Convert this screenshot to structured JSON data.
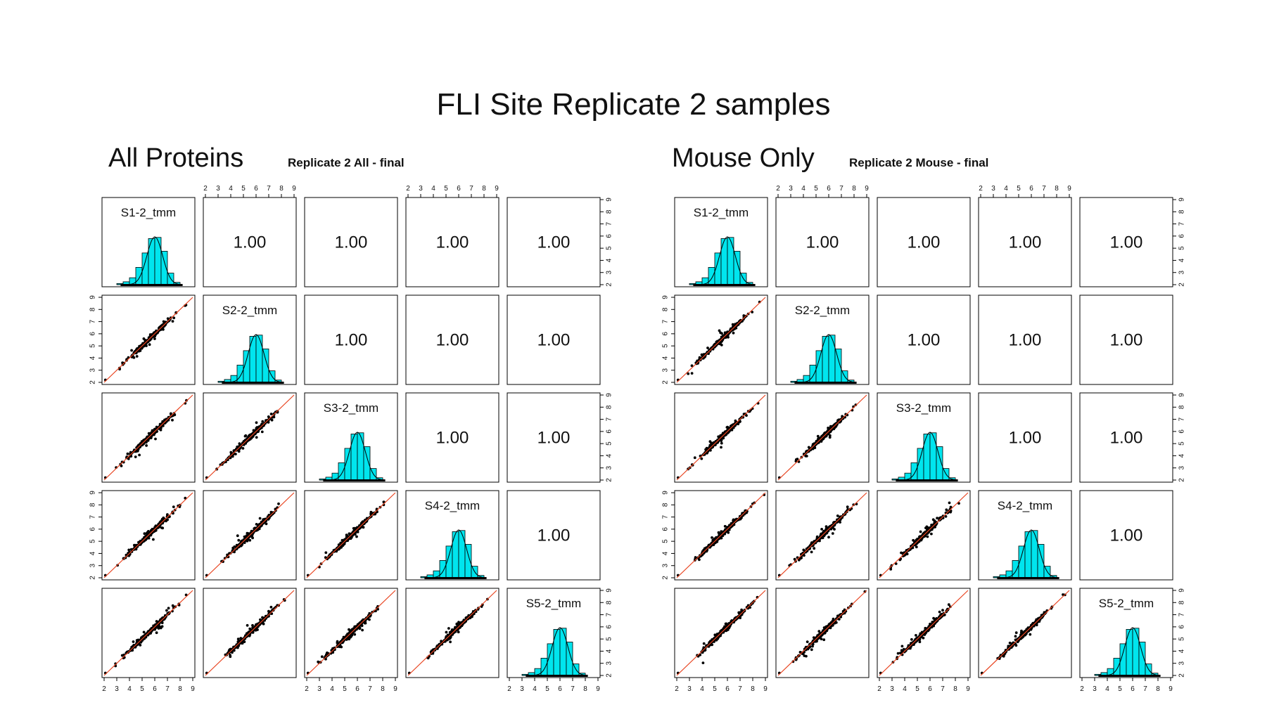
{
  "page": {
    "title": "FLI Site Replicate 2 samples"
  },
  "colors": {
    "hist_fill": "#00e5ee",
    "point": "#000000",
    "fit_line": "#e8431f",
    "frame": "#000000"
  },
  "chart_data": [
    {
      "type": "scatter",
      "section_label": "All Proteins",
      "title": "Replicate 2 All - final",
      "variables": [
        "S1-2_tmm",
        "S2-2_tmm",
        "S3-2_tmm",
        "S4-2_tmm",
        "S5-2_tmm"
      ],
      "axis_range": [
        2,
        9
      ],
      "tick_labels": [
        "2",
        "3",
        "4",
        "5",
        "6",
        "7",
        "8",
        "9"
      ],
      "diagonal": "histogram",
      "upper": "correlation",
      "correlations": [
        [
          "",
          "1.00",
          "1.00",
          "1.00",
          "1.00"
        ],
        [
          "",
          "",
          "1.00",
          "1.00",
          "1.00"
        ],
        [
          "",
          "",
          "",
          "1.00",
          "1.00"
        ],
        [
          "",
          "",
          "",
          "",
          "1.00"
        ],
        [
          "",
          "",
          "",
          "",
          ""
        ]
      ],
      "histogram_bins": [
        3.0,
        3.5,
        4.0,
        4.5,
        5.0,
        5.5,
        6.0,
        6.5,
        7.0,
        7.5,
        8.0
      ],
      "histogram_heights": [
        0.02,
        0.05,
        0.12,
        0.3,
        0.55,
        0.8,
        0.82,
        0.58,
        0.2,
        0.04
      ],
      "lower": "scatter with fitted line y = x",
      "fit_line": {
        "slope": 1,
        "intercept": 0
      }
    },
    {
      "type": "scatter",
      "section_label": "Mouse Only",
      "title": "Replicate 2 Mouse - final",
      "variables": [
        "S1-2_tmm",
        "S2-2_tmm",
        "S3-2_tmm",
        "S4-2_tmm",
        "S5-2_tmm"
      ],
      "axis_range": [
        2,
        9
      ],
      "tick_labels": [
        "2",
        "3",
        "4",
        "5",
        "6",
        "7",
        "8",
        "9"
      ],
      "diagonal": "histogram",
      "upper": "correlation",
      "correlations": [
        [
          "",
          "1.00",
          "1.00",
          "1.00",
          "1.00"
        ],
        [
          "",
          "",
          "1.00",
          "1.00",
          "1.00"
        ],
        [
          "",
          "",
          "",
          "1.00",
          "1.00"
        ],
        [
          "",
          "",
          "",
          "",
          "1.00"
        ],
        [
          "",
          "",
          "",
          "",
          ""
        ]
      ],
      "histogram_bins": [
        3.0,
        3.5,
        4.0,
        4.5,
        5.0,
        5.5,
        6.0,
        6.5,
        7.0,
        7.5,
        8.0
      ],
      "histogram_heights": [
        0.02,
        0.05,
        0.12,
        0.3,
        0.55,
        0.8,
        0.82,
        0.58,
        0.2,
        0.04
      ],
      "lower": "scatter with fitted line y = x",
      "fit_line": {
        "slope": 1,
        "intercept": 0
      }
    }
  ]
}
